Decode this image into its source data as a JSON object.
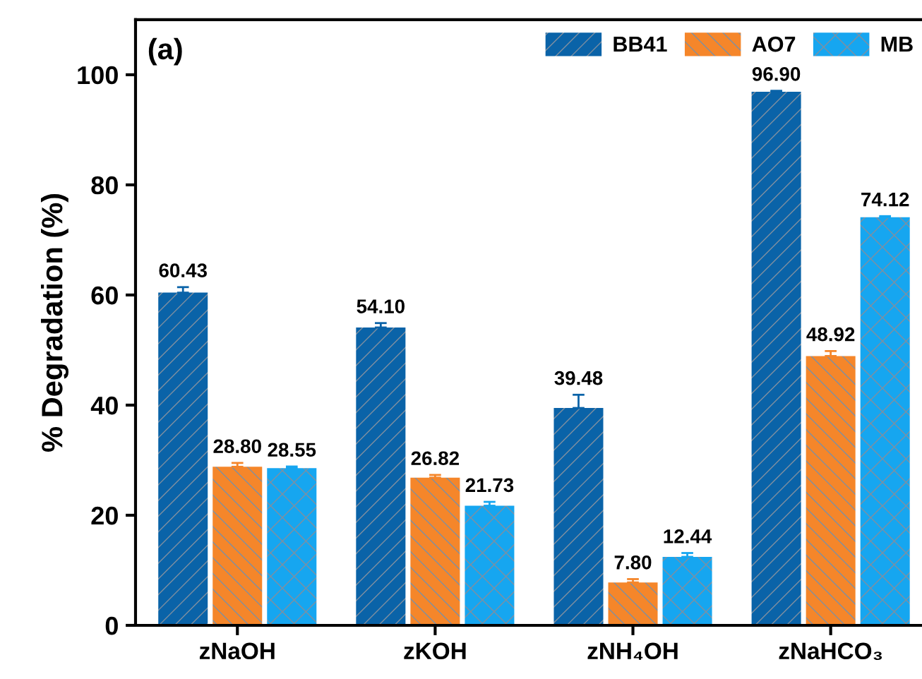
{
  "chart_data": {
    "type": "bar",
    "ylabel": "% Degradation (%)",
    "categories": [
      "zNaOH",
      "zKOH",
      "zNH₄OH",
      "zNaHCO₃"
    ],
    "series": [
      {
        "name": "BB41",
        "color": "#0a63a8",
        "values": [
          60.43,
          54.1,
          39.48,
          96.9
        ],
        "value_labels": [
          "60.43",
          "54.10",
          "39.48",
          "96.90"
        ],
        "errors": [
          1.0,
          0.8,
          2.4,
          0.2
        ]
      },
      {
        "name": "AO7",
        "color": "#f5862a",
        "values": [
          28.8,
          26.82,
          7.8,
          48.92
        ],
        "value_labels": [
          "28.80",
          "26.82",
          "7.80",
          "48.92"
        ],
        "errors": [
          0.7,
          0.5,
          0.6,
          0.9
        ]
      },
      {
        "name": "MB",
        "color": "#16a6f0",
        "values": [
          28.55,
          21.73,
          12.44,
          74.12
        ],
        "value_labels": [
          "28.55",
          "21.73",
          "12.44",
          "74.12"
        ],
        "errors": [
          0.3,
          0.7,
          0.7,
          0.2
        ]
      }
    ],
    "ylim": [
      0,
      110
    ],
    "yticks": [
      0,
      20,
      40,
      60,
      80,
      100
    ],
    "legend": "top right",
    "grid": false,
    "annotations": [
      "(a)"
    ]
  }
}
